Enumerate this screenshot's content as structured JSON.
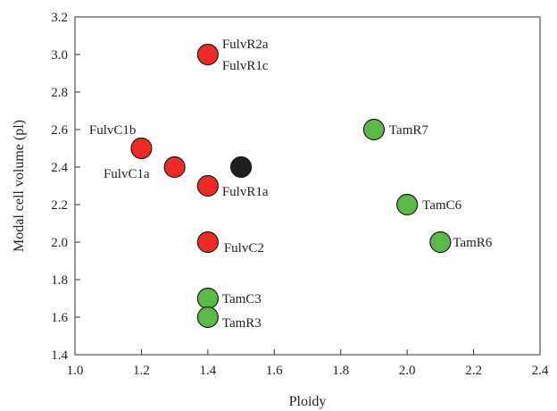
{
  "chart_data": {
    "type": "scatter",
    "xlabel": "Ploidy",
    "ylabel": "Modal cell volume (pl)",
    "xlim": [
      1.0,
      2.4
    ],
    "ylim": [
      1.4,
      3.2
    ],
    "x_ticks": [
      1.0,
      1.2,
      1.4,
      1.6,
      1.8,
      2.0,
      2.2,
      2.4
    ],
    "y_ticks": [
      1.4,
      1.6,
      1.8,
      2.0,
      2.2,
      2.4,
      2.6,
      2.8,
      3.0,
      3.2
    ],
    "x_tick_labels": [
      "1.0",
      "1.2",
      "1.4",
      "1.6",
      "1.8",
      "2.0",
      "2.2",
      "2.4"
    ],
    "y_tick_labels": [
      "1.4",
      "1.6",
      "1.8",
      "2.0",
      "2.2",
      "2.4",
      "2.6",
      "2.8",
      "3.0",
      "3.2"
    ],
    "grid": false,
    "colors": {
      "fulv": "#ee2a24",
      "tam": "#5bb947",
      "control": "#1f1f1f"
    },
    "points": [
      {
        "x": 1.4,
        "y": 3.0,
        "group": "fulv",
        "labels": [
          "FulvR2a",
          "FulvR1c"
        ]
      },
      {
        "x": 1.2,
        "y": 2.5,
        "group": "fulv",
        "labels": [
          "FulvC1b"
        ]
      },
      {
        "x": 1.3,
        "y": 2.4,
        "group": "fulv",
        "labels": [
          "FulvC1a"
        ]
      },
      {
        "x": 1.4,
        "y": 2.3,
        "group": "fulv",
        "labels": [
          "FulvR1a"
        ]
      },
      {
        "x": 1.4,
        "y": 2.0,
        "group": "fulv",
        "labels": [
          "FulvC2"
        ]
      },
      {
        "x": 1.5,
        "y": 2.4,
        "group": "control",
        "labels": []
      },
      {
        "x": 1.9,
        "y": 2.6,
        "group": "tam",
        "labels": [
          "TamR7"
        ]
      },
      {
        "x": 2.0,
        "y": 2.2,
        "group": "tam",
        "labels": [
          "TamC6"
        ]
      },
      {
        "x": 2.1,
        "y": 2.0,
        "group": "tam",
        "labels": [
          "TamR6"
        ]
      },
      {
        "x": 1.4,
        "y": 1.7,
        "group": "tam",
        "labels": [
          "TamC3"
        ]
      },
      {
        "x": 1.4,
        "y": 1.6,
        "group": "tam",
        "labels": [
          "TamR3"
        ]
      }
    ]
  }
}
